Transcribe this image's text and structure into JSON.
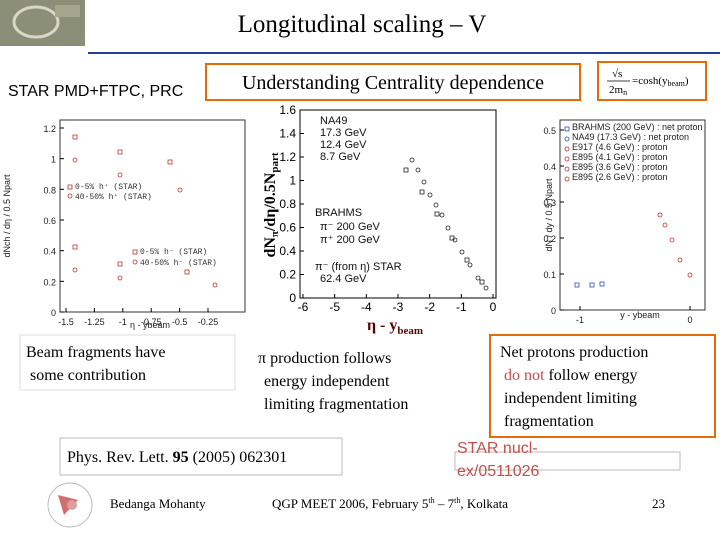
{
  "header": {
    "title": "Longitudinal scaling – V",
    "source": "STAR PMD+FTPC, PRC",
    "subtitle": "Understanding Centrality dependence",
    "formula": {
      "numerator": "√s",
      "denominator": "2m",
      "den_sub": "n",
      "rhs": "=cosh(y",
      "rhs_sub": "beam",
      "rhs_end": ")"
    }
  },
  "left_plot": {
    "yticks": [
      0,
      0.2,
      0.4,
      0.6,
      0.8,
      1,
      1.2
    ],
    "xticks": [
      -1.5,
      -1.25,
      -1,
      -0.75,
      -0.5,
      -0.25
    ],
    "ylabel": "dNch / dη / 0.5 Npart",
    "xlabel": "η - ybeam",
    "legend": [
      "0-5% h⁺ (STAR)",
      "40-50% h⁺ (STAR)",
      "0-5% h⁻ (STAR)",
      "40-50% h⁻ (STAR)"
    ]
  },
  "middle_plot": {
    "yticks": [
      0,
      0.2,
      0.4,
      0.6,
      0.8,
      1,
      1.2,
      1.4,
      1.6
    ],
    "xticks": [
      -6,
      -5,
      -4,
      -3,
      -2,
      -1,
      0
    ],
    "ylabel": [
      "dN",
      "π",
      "/dη/0.5N",
      "part"
    ],
    "xlabel": [
      "η - y",
      "beam"
    ],
    "legend": [
      "NA49",
      "17.3 GeV",
      "12.4 GeV",
      "8.7 GeV",
      "BRAHMS",
      "π⁻ 200 GeV",
      "π⁺ 200 GeV",
      "π⁻ (from η) STAR",
      "62.4 GeV"
    ]
  },
  "right_plot": {
    "yticks": [
      0,
      0.1,
      0.2,
      0.3,
      0.4,
      0.5
    ],
    "xticks": [
      -1,
      0
    ],
    "ylabel": "dN / dy / 0.5 Npart",
    "xlabel": "y - ybeam",
    "legend": [
      "BRAHMS (200 GeV) : net proton",
      "NA49 (17.3 GeV) : net proton",
      "E917 (4.6 GeV) : proton",
      "E895 (4.1 GeV) : proton",
      "E895 (3.6 GeV) : proton",
      "E895 (2.6 GeV) : proton"
    ]
  },
  "notes": {
    "beam": [
      "Beam fragments have",
      "some contribution"
    ],
    "pion": [
      "π production follows",
      "energy  independent",
      "limiting fragmentation"
    ],
    "proton": {
      "l1": "Net protons production",
      "l2a": "do not",
      "l2b": " follow energy",
      "l3": "independent limiting",
      "l4": "fragmentation"
    },
    "reference": {
      "pre": "Phys. Rev. Lett. ",
      "vol": "95",
      "post": " (2005) 062301"
    },
    "preprint": [
      "STAR nucl-",
      "ex/0511026"
    ]
  },
  "footer": {
    "author": "Bedanga Mohanty",
    "event": [
      "QGP MEET 2006, February 5",
      "th",
      " – 7",
      "th",
      ", Kolkata"
    ],
    "page": "23"
  }
}
